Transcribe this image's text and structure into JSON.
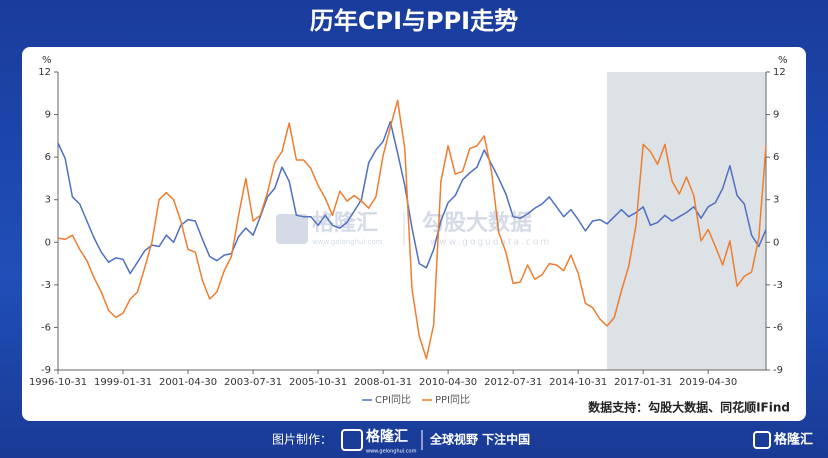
{
  "chart_data": {
    "type": "line",
    "title": "历年CPI与PPI走势",
    "x": [
      "1996-10-31",
      "1997-01-31",
      "1997-04-30",
      "1997-07-31",
      "1997-10-31",
      "1998-01-31",
      "1998-04-30",
      "1998-07-31",
      "1998-10-31",
      "1999-01-31",
      "1999-04-30",
      "1999-07-31",
      "1999-10-31",
      "2000-01-31",
      "2000-04-30",
      "2000-07-31",
      "2000-10-31",
      "2001-01-31",
      "2001-04-30",
      "2001-07-31",
      "2001-10-31",
      "2002-01-31",
      "2002-04-30",
      "2002-07-31",
      "2002-10-31",
      "2003-01-31",
      "2003-04-30",
      "2003-07-31",
      "2003-10-31",
      "2004-01-31",
      "2004-04-30",
      "2004-07-31",
      "2004-10-31",
      "2005-01-31",
      "2005-04-30",
      "2005-07-31",
      "2005-10-31",
      "2006-01-31",
      "2006-04-30",
      "2006-07-31",
      "2006-10-31",
      "2007-01-31",
      "2007-04-30",
      "2007-07-31",
      "2007-10-31",
      "2008-01-31",
      "2008-04-30",
      "2008-07-31",
      "2008-10-31",
      "2009-01-31",
      "2009-04-30",
      "2009-07-31",
      "2009-10-31",
      "2010-01-31",
      "2010-04-30",
      "2010-07-31",
      "2010-10-31",
      "2011-01-31",
      "2011-04-30",
      "2011-07-31",
      "2011-10-31",
      "2012-01-31",
      "2012-04-30",
      "2012-07-31",
      "2012-10-31",
      "2013-01-31",
      "2013-04-30",
      "2013-07-31",
      "2013-10-31",
      "2014-01-31",
      "2014-04-30",
      "2014-07-31",
      "2014-10-31",
      "2015-01-31",
      "2015-04-30",
      "2015-07-31",
      "2015-10-31",
      "2016-01-31",
      "2016-04-30",
      "2016-07-31",
      "2016-10-31",
      "2017-01-31",
      "2017-04-30",
      "2017-07-31",
      "2017-10-31",
      "2018-01-31",
      "2018-04-30",
      "2018-07-31",
      "2018-10-31",
      "2019-01-31",
      "2019-04-30",
      "2019-07-31",
      "2019-10-31",
      "2020-01-31",
      "2020-04-30",
      "2020-07-31",
      "2020-10-31",
      "2021-01-31",
      "2021-04-30"
    ],
    "xticks": [
      "1996-10-31",
      "1999-01-31",
      "2001-04-30",
      "2003-07-31",
      "2005-10-31",
      "2008-01-31",
      "2010-04-30",
      "2012-07-31",
      "2014-10-31",
      "2017-01-31",
      "2019-04-30"
    ],
    "ylim": [
      -9,
      12
    ],
    "yticks": [
      -9,
      -6,
      -3,
      0,
      3,
      6,
      9,
      12
    ],
    "y_label": "%",
    "y2lim": [
      -9,
      12
    ],
    "y2ticks": [
      -9,
      -6,
      -3,
      0,
      3,
      6,
      9,
      12
    ],
    "y2_label": "%",
    "grid": false,
    "shaded_range": [
      "2015-10-31",
      "2021-04-30"
    ],
    "shade_color": "#dde2e6",
    "series": [
      {
        "name": "CPI同比",
        "color": "#4f6fc4",
        "values": [
          7.0,
          5.9,
          3.2,
          2.7,
          1.5,
          0.3,
          -0.7,
          -1.4,
          -1.1,
          -1.2,
          -2.2,
          -1.4,
          -0.6,
          -0.2,
          -0.3,
          0.5,
          0.0,
          1.2,
          1.6,
          1.5,
          0.2,
          -1.0,
          -1.3,
          -0.9,
          -0.8,
          0.4,
          1.0,
          0.5,
          1.8,
          3.2,
          3.8,
          5.3,
          4.3,
          1.9,
          1.8,
          1.8,
          1.2,
          1.9,
          1.2,
          1.0,
          1.4,
          2.2,
          3.0,
          5.6,
          6.5,
          7.1,
          8.5,
          6.3,
          4.0,
          1.0,
          -1.5,
          -1.8,
          -0.5,
          1.5,
          2.8,
          3.3,
          4.4,
          4.9,
          5.3,
          6.5,
          5.5,
          4.5,
          3.4,
          1.8,
          1.7,
          2.0,
          2.4,
          2.7,
          3.2,
          2.5,
          1.8,
          2.3,
          1.6,
          0.8,
          1.5,
          1.6,
          1.3,
          1.8,
          2.3,
          1.8,
          2.1,
          2.5,
          1.2,
          1.4,
          1.9,
          1.5,
          1.8,
          2.1,
          2.5,
          1.7,
          2.5,
          2.8,
          3.8,
          5.4,
          3.3,
          2.7,
          0.5,
          -0.3,
          0.9
        ]
      },
      {
        "name": "PPI同比",
        "color": "#ee7d2e",
        "values": [
          0.3,
          0.2,
          0.5,
          -0.5,
          -1.3,
          -2.5,
          -3.5,
          -4.8,
          -5.3,
          -5.0,
          -4.0,
          -3.5,
          -1.8,
          0.0,
          3.0,
          3.5,
          3.0,
          1.5,
          -0.5,
          -0.7,
          -2.7,
          -4.0,
          -3.5,
          -2.0,
          -1.0,
          1.9,
          4.5,
          1.5,
          1.9,
          3.5,
          5.6,
          6.4,
          8.4,
          5.8,
          5.8,
          5.2,
          4.0,
          3.1,
          1.9,
          3.6,
          2.9,
          3.3,
          2.9,
          2.4,
          3.2,
          6.1,
          8.1,
          10.0,
          6.6,
          -3.3,
          -6.6,
          -8.2,
          -5.8,
          4.3,
          6.8,
          4.8,
          5.0,
          6.6,
          6.8,
          7.5,
          5.0,
          0.7,
          -0.7,
          -2.9,
          -2.8,
          -1.6,
          -2.6,
          -2.3,
          -1.5,
          -1.6,
          -2.0,
          -0.9,
          -2.2,
          -4.3,
          -4.6,
          -5.4,
          -5.9,
          -5.3,
          -3.4,
          -1.7,
          1.2,
          6.9,
          6.4,
          5.5,
          6.9,
          4.3,
          3.4,
          4.6,
          3.3,
          0.1,
          0.9,
          -0.3,
          -1.6,
          0.1,
          -3.1,
          -2.4,
          -2.1,
          0.3,
          6.8
        ]
      }
    ],
    "source": "数据支持：勾股大数据、同花顺IFind"
  },
  "watermarks": [
    {
      "text": "格隆汇",
      "url": "www.gelonghui.com"
    },
    {
      "text": "勾股大数据",
      "url": "www.gogudata.com"
    }
  ],
  "footer": {
    "credit_label": "图片制作：",
    "brand": "格隆汇",
    "brand_url": "www.gelonghui.com",
    "slogan": "全球视野 下注中国",
    "brand_right": "格隆汇"
  }
}
